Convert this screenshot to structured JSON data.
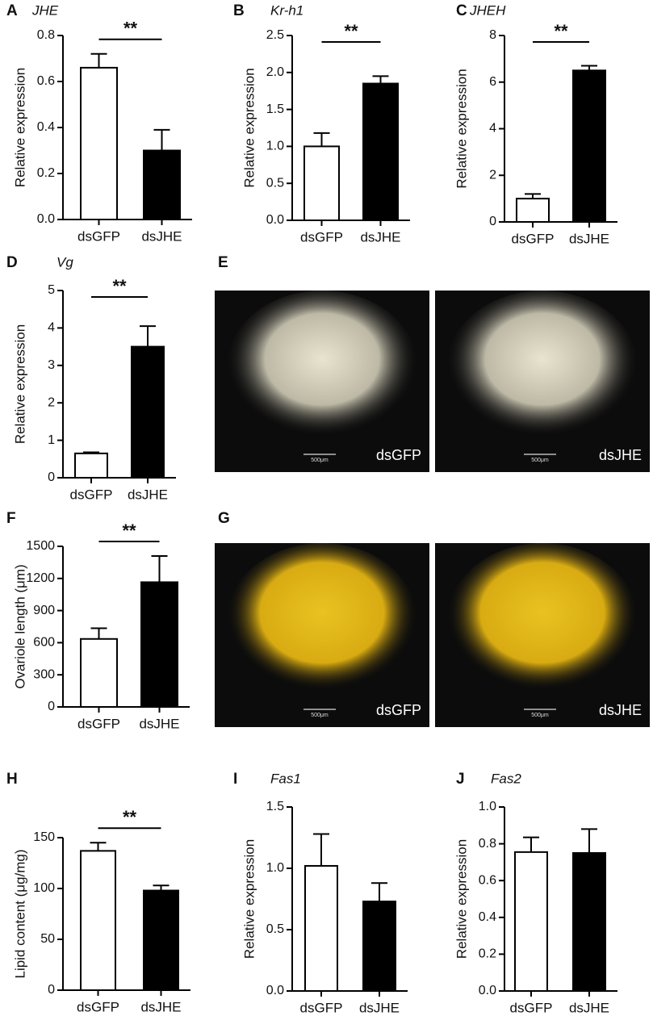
{
  "chart_data": [
    {
      "type": "bar",
      "panel": "A",
      "title": "JHE",
      "y_label": "Relative expression",
      "categories": [
        "dsGFP",
        "dsJHE"
      ],
      "values": [
        0.66,
        0.3
      ],
      "errors": [
        0.06,
        0.09
      ],
      "significance": "**",
      "colors": [
        "#ffffff",
        "#000000"
      ],
      "ylim": [
        0,
        0.8
      ],
      "yticks": [
        {
          "value": 0,
          "label": "0.0"
        },
        0.2,
        0.4,
        0.6,
        0.8
      ]
    },
    {
      "type": "bar",
      "panel": "B",
      "title": "Kr-h1",
      "y_label": "Relative expression",
      "categories": [
        "dsGFP",
        "dsJHE"
      ],
      "values": [
        1.0,
        1.85
      ],
      "errors": [
        0.18,
        0.1
      ],
      "significance": "**",
      "colors": [
        "#ffffff",
        "#000000"
      ],
      "ylim": [
        0,
        2.5
      ],
      "yticks": [
        {
          "value": 0,
          "label": "0.0"
        },
        0.5,
        {
          "value": 1,
          "label": "1.0"
        },
        1.5,
        {
          "value": 2,
          "label": "2.0"
        },
        2.5
      ]
    },
    {
      "type": "bar",
      "panel": "C",
      "title": "JHEH",
      "y_label": "Relative expression",
      "categories": [
        "dsGFP",
        "dsJHE"
      ],
      "values": [
        1.0,
        6.5
      ],
      "errors": [
        0.2,
        0.2
      ],
      "significance": "**",
      "colors": [
        "#ffffff",
        "#000000"
      ],
      "ylim": [
        0,
        8
      ],
      "yticks": [
        0,
        2,
        4,
        6,
        8
      ]
    },
    {
      "type": "bar",
      "panel": "D",
      "title": "Vg",
      "y_label": "Relative expression",
      "categories": [
        "dsGFP",
        "dsJHE"
      ],
      "values": [
        0.65,
        3.5
      ],
      "errors": [
        0.03,
        0.55
      ],
      "significance": "**",
      "colors": [
        "#ffffff",
        "#000000"
      ],
      "ylim": [
        0,
        5
      ],
      "yticks": [
        0,
        1,
        2,
        3,
        4,
        5
      ]
    },
    {
      "type": "bar",
      "panel": "F",
      "y_label": "Ovariole length (μm)",
      "categories": [
        "dsGFP",
        "dsJHE"
      ],
      "values": [
        635,
        1165
      ],
      "errors": [
        100,
        245
      ],
      "significance": "**",
      "colors": [
        "#ffffff",
        "#000000"
      ],
      "ylim": [
        0,
        1500
      ],
      "yticks": [
        0,
        300,
        600,
        900,
        1200,
        1500
      ]
    },
    {
      "type": "bar",
      "panel": "H",
      "y_label": "Lipid content (μg/mg)",
      "categories": [
        "dsGFP",
        "dsJHE"
      ],
      "values": [
        137,
        98
      ],
      "errors": [
        8,
        5
      ],
      "significance": "**",
      "colors": [
        "#ffffff",
        "#000000"
      ],
      "ylim": [
        0,
        150
      ],
      "yticks": [
        0,
        50,
        100,
        150
      ]
    },
    {
      "type": "bar",
      "panel": "I",
      "title": "Fas1",
      "y_label": "Relative expression",
      "categories": [
        "dsGFP",
        "dsJHE"
      ],
      "values": [
        1.02,
        0.73
      ],
      "errors": [
        0.26,
        0.15
      ],
      "colors": [
        "#ffffff",
        "#000000"
      ],
      "ylim": [
        0,
        1.5
      ],
      "yticks": [
        {
          "value": 0,
          "label": "0.0"
        },
        0.5,
        {
          "value": 1,
          "label": "1.0"
        },
        1.5
      ]
    },
    {
      "type": "bar",
      "panel": "J",
      "title": "Fas2",
      "y_label": "Relative expression",
      "categories": [
        "dsGFP",
        "dsJHE"
      ],
      "values": [
        0.755,
        0.75
      ],
      "errors": [
        0.08,
        0.13
      ],
      "colors": [
        "#ffffff",
        "#000000"
      ],
      "ylim": [
        0,
        1
      ],
      "yticks": [
        {
          "value": 0,
          "label": "0.0"
        },
        0.2,
        0.4,
        0.6,
        0.8,
        {
          "value": 1,
          "label": "1.0"
        }
      ]
    }
  ],
  "images": [
    {
      "panel": "E",
      "labels": [
        "dsGFP",
        "dsJHE"
      ],
      "scale_bars": [
        "500μm",
        "500μm"
      ]
    },
    {
      "panel": "G",
      "labels": [
        "dsGFP",
        "dsJHE"
      ],
      "scale_bars": [
        "500μm",
        "500μm"
      ]
    }
  ]
}
